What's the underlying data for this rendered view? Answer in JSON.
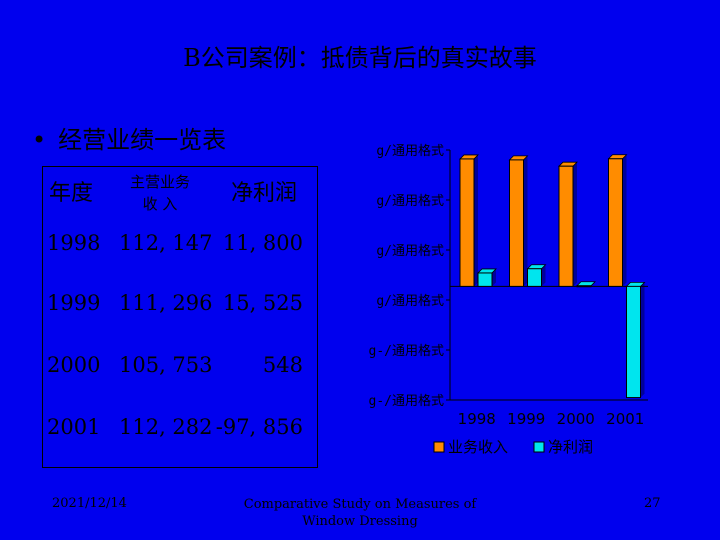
{
  "title": "B公司案例：抵债背后的真实故事",
  "bullet": "经营业绩一览表",
  "table": {
    "headers": [
      "年度",
      "主营业务",
      "收 入",
      "净利润"
    ],
    "rows": [
      {
        "year": "1998",
        "revenue": "112, 147",
        "profit": "11, 800"
      },
      {
        "year": "1999",
        "revenue": "111, 296",
        "profit": "15, 525"
      },
      {
        "year": "2000",
        "revenue": "105, 753",
        "profit": "548"
      },
      {
        "year": "2001",
        "revenue": "112, 282",
        "profit": "-97, 856"
      }
    ]
  },
  "chart_data": {
    "type": "bar",
    "categories": [
      "1998",
      "1999",
      "2000",
      "2001"
    ],
    "series": [
      {
        "name": "业务收入",
        "values": [
          112147,
          111296,
          105753,
          112282
        ],
        "color": "#ff8c00"
      },
      {
        "name": "净利润",
        "values": [
          11800,
          15525,
          548,
          -97856
        ],
        "color": "#00e5ee"
      }
    ],
    "ytick_labels": [
      "g/通用格式",
      "g/通用格式",
      "g/通用格式",
      "g/通用格式",
      "g-/通用格式",
      "g-/通用格式"
    ],
    "ylim": [
      -100000,
      120000
    ],
    "legend": "bottom",
    "grid": false
  },
  "footer": {
    "date": "2021/12/14",
    "center_line1": "Comparative Study on Measures of",
    "center_line2": "Window Dressing",
    "page": "27"
  }
}
